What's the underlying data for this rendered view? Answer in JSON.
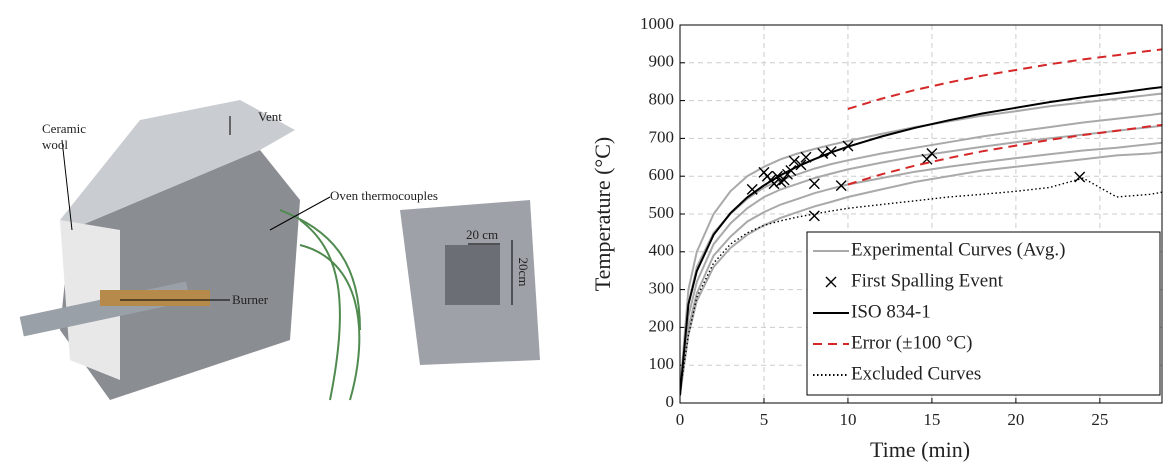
{
  "photo": {
    "labels": [
      "Ceramic",
      "wool",
      "Vent",
      "Oven thermocouples",
      "Burner",
      "20 cm",
      "20cm"
    ]
  },
  "chart_data": {
    "type": "line",
    "xlabel": "Time (min)",
    "ylabel": "Temperature (°C)",
    "xlim": [
      0,
      28.7
    ],
    "ylim": [
      0,
      1000
    ],
    "xticks": [
      0,
      5,
      10,
      15,
      20,
      25
    ],
    "yticks": [
      0,
      100,
      200,
      300,
      400,
      500,
      600,
      700,
      800,
      900,
      1000
    ],
    "grid": true,
    "legend": "lower right",
    "x": [
      0,
      0.5,
      1,
      2,
      3,
      4,
      5,
      6,
      7,
      8,
      9,
      10,
      12,
      14,
      16,
      18,
      20,
      22,
      24,
      26,
      28,
      29
    ],
    "series": [
      {
        "name": "Experimental Curves (Avg.)",
        "color": "#a9a9a9",
        "style": "solid",
        "curves": [
          [
            30,
            300,
            400,
            500,
            560,
            600,
            625,
            645,
            660,
            672,
            683,
            693,
            712,
            730,
            745,
            760,
            772,
            785,
            795,
            805,
            815,
            820
          ],
          [
            25,
            260,
            360,
            450,
            500,
            540,
            570,
            590,
            605,
            620,
            632,
            642,
            660,
            675,
            690,
            705,
            718,
            730,
            742,
            752,
            762,
            768
          ],
          [
            25,
            230,
            320,
            420,
            475,
            515,
            545,
            565,
            580,
            595,
            607,
            618,
            636,
            652,
            665,
            678,
            690,
            700,
            710,
            720,
            730,
            735
          ],
          [
            20,
            200,
            290,
            390,
            440,
            480,
            505,
            525,
            540,
            555,
            567,
            578,
            595,
            612,
            625,
            637,
            648,
            658,
            668,
            675,
            685,
            690
          ],
          [
            22,
            180,
            270,
            360,
            410,
            445,
            470,
            490,
            505,
            520,
            532,
            545,
            565,
            585,
            600,
            615,
            625,
            635,
            645,
            655,
            660,
            665
          ]
        ]
      },
      {
        "name": "First Spalling Event",
        "color": "#000000",
        "style": "marker",
        "x": [
          4.3,
          5,
          5.2,
          5.4,
          5.6,
          5.8,
          6,
          6.2,
          6.4,
          6.6,
          6.8,
          7.2,
          7.5,
          8,
          8,
          8.5,
          9,
          9.6,
          10,
          14.7,
          15,
          23.8
        ],
        "values": [
          565,
          610,
          600,
          590,
          580,
          600,
          585,
          590,
          605,
          615,
          640,
          630,
          650,
          580,
          495,
          660,
          665,
          575,
          680,
          645,
          660,
          598
        ]
      },
      {
        "name": "ISO 834-1",
        "color": "#000000",
        "style": "solid",
        "values": [
          20,
          261,
          349,
          445,
          502,
          544,
          576,
          603,
          626,
          645,
          663,
          678,
          705,
          728,
          748,
          766,
          781,
          796,
          809,
          820,
          832,
          837
        ]
      },
      {
        "name": "Error (±100 °C)",
        "color": "#d62728",
        "style": "dashed",
        "curves": [
          [
            null,
            null,
            null,
            null,
            null,
            null,
            null,
            null,
            null,
            null,
            null,
            778,
            805,
            828,
            848,
            866,
            881,
            896,
            909,
            920,
            932,
            937
          ],
          [
            null,
            null,
            null,
            null,
            null,
            null,
            null,
            null,
            null,
            null,
            null,
            578,
            605,
            628,
            648,
            666,
            681,
            696,
            709,
            720,
            732,
            737
          ]
        ]
      },
      {
        "name": "Excluded Curves",
        "color": "#000000",
        "style": "dotted",
        "curves": [
          [
            30,
            180,
            280,
            370,
            420,
            450,
            470,
            482,
            492,
            500,
            508,
            515,
            525,
            535,
            545,
            552,
            560,
            570,
            595,
            545,
            552,
            560
          ]
        ]
      }
    ]
  }
}
